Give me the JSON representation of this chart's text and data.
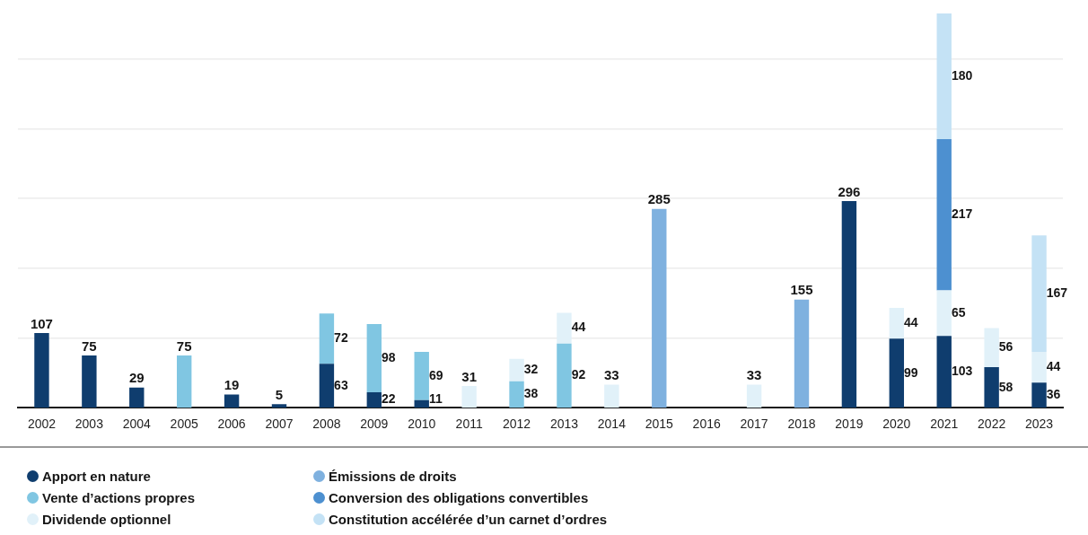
{
  "chart_data": {
    "type": "bar",
    "stacked": true,
    "data_labels": true,
    "grid": "y",
    "legend": "bottom",
    "tick_labels": "x",
    "categories": [
      "2002",
      "2003",
      "2004",
      "2005",
      "2006",
      "2007",
      "2008",
      "2009",
      "2010",
      "2011",
      "2012",
      "2013",
      "2014",
      "2015",
      "2016",
      "2017",
      "2018",
      "2019",
      "2020",
      "2021",
      "2022",
      "2023"
    ],
    "yticks": [
      {
        "value": 100,
        "label": null
      },
      {
        "value": 200,
        "label": null
      },
      {
        "value": 300,
        "label": null
      },
      {
        "value": 400,
        "label": null
      },
      {
        "value": 500,
        "label": null
      }
    ],
    "series": [
      {
        "name": "Apport en nature",
        "color": "#0f3d6e",
        "values": [
          107,
          75,
          29,
          null,
          19,
          5,
          63,
          22,
          11,
          null,
          null,
          null,
          null,
          null,
          null,
          null,
          null,
          296,
          99,
          103,
          58,
          36
        ]
      },
      {
        "name": "Vente d’actions propres",
        "color": "#80c6e2",
        "values": [
          null,
          null,
          null,
          75,
          null,
          null,
          72,
          98,
          69,
          null,
          38,
          92,
          null,
          null,
          null,
          null,
          null,
          null,
          null,
          null,
          null,
          null
        ]
      },
      {
        "name": "Dividende optionnel",
        "color": "#e1f1f9",
        "values": [
          null,
          null,
          null,
          null,
          null,
          null,
          null,
          null,
          null,
          31,
          32,
          44,
          33,
          null,
          null,
          33,
          null,
          null,
          44,
          65,
          56,
          44
        ]
      },
      {
        "name": "Émissions de droits",
        "color": "#7fb1df",
        "values": [
          null,
          null,
          null,
          null,
          null,
          null,
          null,
          null,
          null,
          null,
          null,
          null,
          null,
          285,
          null,
          null,
          155,
          null,
          null,
          null,
          null,
          null
        ]
      },
      {
        "name": "Conversion des obligations convertibles",
        "color": "#4d90d0",
        "values": [
          null,
          null,
          null,
          null,
          null,
          null,
          null,
          null,
          null,
          null,
          null,
          null,
          null,
          null,
          null,
          null,
          null,
          null,
          null,
          217,
          null,
          null
        ]
      },
      {
        "name": "Constitution accélérée d’un carnet d’ordres",
        "color": "#c4e2f5",
        "values": [
          null,
          null,
          null,
          null,
          null,
          null,
          null,
          null,
          null,
          null,
          null,
          null,
          null,
          null,
          null,
          null,
          null,
          null,
          null,
          180,
          null,
          167
        ]
      }
    ]
  }
}
